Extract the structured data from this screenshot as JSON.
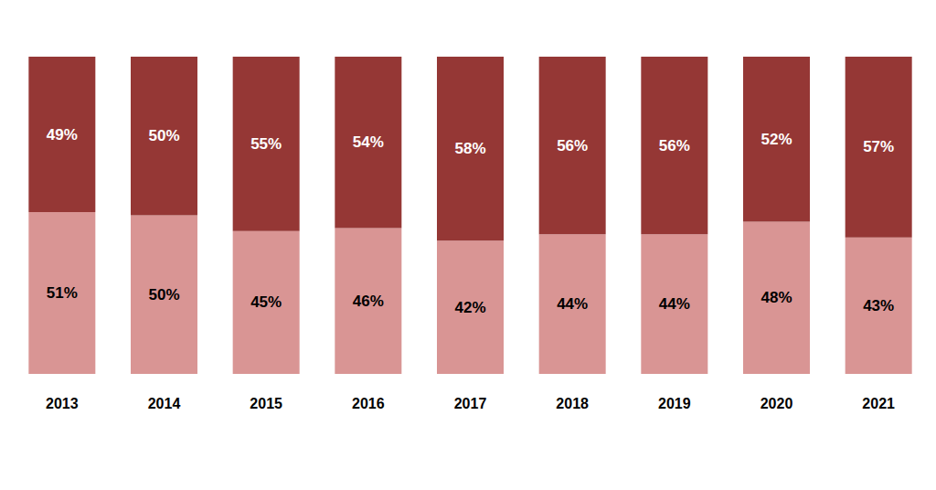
{
  "chart_data": {
    "type": "bar",
    "categories": [
      "2013",
      "2014",
      "2015",
      "2016",
      "2017",
      "2018",
      "2019",
      "2020",
      "2021"
    ],
    "series": [
      {
        "color": "#d99594",
        "values": [
          51,
          50,
          45,
          46,
          42,
          44,
          44,
          48,
          43
        ],
        "value_labels": [
          "51%",
          "50%",
          "45%",
          "46%",
          "42%",
          "44%",
          "44%",
          "48%",
          "43%"
        ]
      },
      {
        "color": "#953735",
        "values": [
          49,
          50,
          55,
          54,
          58,
          56,
          56,
          52,
          57
        ],
        "value_labels": [
          "49%",
          "50%",
          "55%",
          "54%",
          "58%",
          "56%",
          "56%",
          "52%",
          "57%"
        ]
      }
    ],
    "ylim": [
      0,
      100
    ],
    "stacked": true,
    "data_labels": true,
    "grid": false,
    "tick_labels": "x"
  }
}
